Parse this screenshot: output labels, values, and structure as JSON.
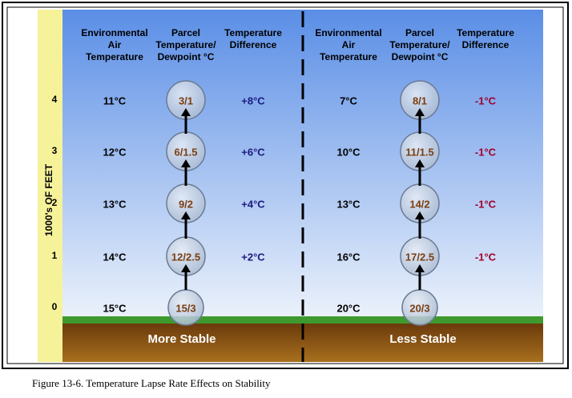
{
  "y_axis": {
    "title": "1000's OF FEET",
    "labels": [
      "4",
      "3",
      "2",
      "1",
      "0"
    ]
  },
  "panels": [
    {
      "headers": [
        [
          "Environmental",
          "Air",
          "Temperature"
        ],
        [
          "Parcel",
          "Temperature/",
          "Dewpoint °C"
        ],
        [
          "Temperature",
          "Difference"
        ]
      ],
      "rows": [
        {
          "env": "11°C",
          "parcel": "3/1",
          "diff": "+8°C"
        },
        {
          "env": "12°C",
          "parcel": "6/1.5",
          "diff": "+6°C"
        },
        {
          "env": "13°C",
          "parcel": "9/2",
          "diff": "+4°C"
        },
        {
          "env": "14°C",
          "parcel": "12/2.5",
          "diff": "+2°C"
        },
        {
          "env": "15°C",
          "parcel": "15/3"
        }
      ],
      "label": "More Stable"
    },
    {
      "headers": [
        [
          "Environmental",
          "Air",
          "Temperature"
        ],
        [
          "Parcel",
          "Temperature/",
          "Dewpoint °C"
        ],
        [
          "Temperature",
          "Difference"
        ]
      ],
      "rows": [
        {
          "env": "7°C",
          "parcel": "8/1",
          "diff": "-1°C"
        },
        {
          "env": "10°C",
          "parcel": "11/1.5",
          "diff": "-1°C"
        },
        {
          "env": "13°C",
          "parcel": "14/2",
          "diff": "-1°C"
        },
        {
          "env": "16°C",
          "parcel": "17/2.5",
          "diff": "-1°C"
        },
        {
          "env": "20°C",
          "parcel": "20/3"
        }
      ],
      "label": "Less Stable"
    }
  ],
  "caption": "Figure 13-6. Temperature Lapse Rate Effects on Stability"
}
